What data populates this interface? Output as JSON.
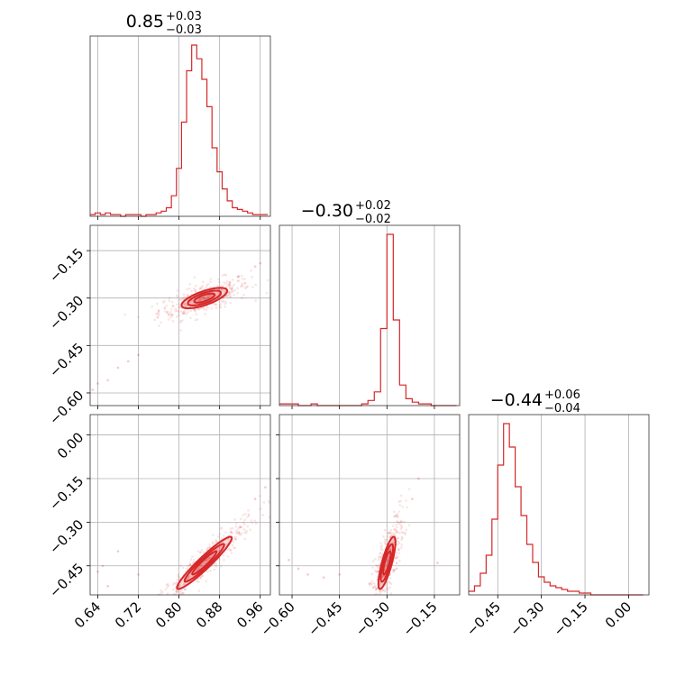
{
  "chart_data": {
    "type": "corner",
    "colors": {
      "series": "#d62728",
      "grid": "#b0b0b0",
      "frame": "#333333"
    },
    "grid": true,
    "parameters": [
      {
        "title_value": "0.85",
        "title_plus": "+0.03",
        "title_minus": "−0.03",
        "range": [
          0.625,
          0.98
        ],
        "ticks": [
          "0.64",
          "0.72",
          "0.80",
          "0.88",
          "0.96"
        ],
        "tick_values": [
          0.64,
          0.72,
          0.8,
          0.88,
          0.96
        ]
      },
      {
        "title_value": "−0.30",
        "title_plus": "+0.02",
        "title_minus": "−0.02",
        "range": [
          -0.64,
          -0.07
        ],
        "ticks": [
          "−0.60",
          "−0.45",
          "−0.30",
          "−0.15"
        ],
        "tick_values": [
          -0.6,
          -0.45,
          -0.3,
          -0.15
        ]
      },
      {
        "title_value": "−0.44",
        "title_plus": "+0.06",
        "title_minus": "−0.04",
        "range": [
          -0.55,
          0.07
        ],
        "ticks": [
          "−0.45",
          "−0.30",
          "−0.15",
          "0.00"
        ],
        "tick_values": [
          -0.45,
          -0.3,
          -0.15,
          0.0
        ]
      }
    ],
    "row_ticks": {
      "1": {
        "ticks": [
          "−0.15",
          "−0.30",
          "−0.45",
          "−0.60"
        ],
        "tick_values": [
          -0.15,
          -0.3,
          -0.45,
          -0.6
        ]
      },
      "2": {
        "ticks": [
          "0.00",
          "−0.15",
          "−0.30",
          "−0.45"
        ],
        "tick_values": [
          0.0,
          -0.15,
          -0.3,
          -0.45
        ]
      }
    },
    "histograms": [
      {
        "param": 0,
        "x": [
          0.63,
          0.64,
          0.65,
          0.66,
          0.67,
          0.68,
          0.69,
          0.7,
          0.71,
          0.72,
          0.73,
          0.74,
          0.75,
          0.76,
          0.77,
          0.78,
          0.79,
          0.8,
          0.81,
          0.82,
          0.83,
          0.84,
          0.85,
          0.86,
          0.87,
          0.88,
          0.89,
          0.9,
          0.91,
          0.92,
          0.93,
          0.94,
          0.95,
          0.96,
          0.97
        ],
        "y": [
          1,
          2,
          1,
          2,
          1,
          1,
          0,
          1,
          1,
          1,
          0,
          1,
          1,
          2,
          3,
          5,
          12,
          28,
          55,
          85,
          100,
          92,
          80,
          64,
          40,
          26,
          16,
          9,
          5,
          4,
          3,
          2,
          1,
          1,
          1
        ]
      },
      {
        "param": 1,
        "x": [
          -0.63,
          -0.61,
          -0.59,
          -0.57,
          -0.55,
          -0.53,
          -0.51,
          -0.49,
          -0.47,
          -0.45,
          -0.43,
          -0.41,
          -0.39,
          -0.37,
          -0.35,
          -0.33,
          -0.31,
          -0.29,
          -0.27,
          -0.25,
          -0.23,
          -0.21,
          -0.19,
          -0.17,
          -0.15,
          -0.13,
          -0.11,
          -0.09
        ],
        "y": [
          1,
          1,
          1,
          0,
          0,
          1,
          0,
          0,
          0,
          0,
          0,
          0,
          0,
          1,
          3,
          8,
          45,
          100,
          50,
          12,
          4,
          2,
          1,
          1,
          0,
          0,
          0,
          0
        ]
      },
      {
        "param": 2,
        "x": [
          -0.54,
          -0.52,
          -0.5,
          -0.48,
          -0.46,
          -0.44,
          -0.42,
          -0.4,
          -0.38,
          -0.36,
          -0.34,
          -0.32,
          -0.3,
          -0.28,
          -0.26,
          -0.24,
          -0.22,
          -0.2,
          -0.18,
          -0.16,
          -0.14,
          -0.12,
          -0.1,
          -0.08,
          -0.06,
          -0.04,
          -0.02,
          0.0,
          0.02,
          0.04
        ],
        "y": [
          2,
          5,
          12,
          22,
          42,
          72,
          95,
          82,
          60,
          44,
          28,
          18,
          10,
          7,
          5,
          4,
          3,
          2,
          2,
          1,
          1,
          0,
          0,
          0,
          0,
          0,
          0,
          0,
          0,
          0
        ]
      }
    ],
    "scatter_panels": [
      {
        "x_param": 0,
        "y_param": 1,
        "ellipse": {
          "cx": 0.85,
          "cy": -0.3,
          "sx": 0.025,
          "sy": 0.018,
          "rho": 0.7
        },
        "outliers": [
          [
            0.63,
            -0.59
          ],
          [
            0.64,
            -0.57
          ],
          [
            0.66,
            -0.56
          ],
          [
            0.68,
            -0.52
          ],
          [
            0.7,
            -0.5
          ],
          [
            0.72,
            -0.48
          ],
          [
            0.95,
            -0.2
          ],
          [
            0.96,
            -0.19
          ],
          [
            0.9,
            -0.25
          ],
          [
            0.76,
            -0.34
          ]
        ]
      },
      {
        "x_param": 0,
        "y_param": 2,
        "ellipse": {
          "cx": 0.85,
          "cy": -0.44,
          "sx": 0.03,
          "sy": 0.05,
          "rho": 0.95
        },
        "outliers": [
          [
            0.64,
            -0.47
          ],
          [
            0.65,
            -0.45
          ],
          [
            0.68,
            -0.4
          ],
          [
            0.72,
            -0.48
          ],
          [
            0.76,
            -0.55
          ],
          [
            0.97,
            -0.18
          ],
          [
            0.95,
            -0.22
          ],
          [
            0.66,
            -0.52
          ]
        ]
      },
      {
        "x_param": 1,
        "y_param": 2,
        "ellipse": {
          "cx": -0.3,
          "cy": -0.44,
          "sx": 0.015,
          "sy": 0.05,
          "rho": 0.8
        },
        "outliers": [
          [
            -0.61,
            -0.43
          ],
          [
            -0.58,
            -0.46
          ],
          [
            -0.55,
            -0.48
          ],
          [
            -0.5,
            -0.49
          ],
          [
            -0.45,
            -0.48
          ],
          [
            -0.2,
            -0.15
          ],
          [
            -0.22,
            -0.22
          ],
          [
            -0.14,
            -0.44
          ]
        ]
      }
    ]
  }
}
